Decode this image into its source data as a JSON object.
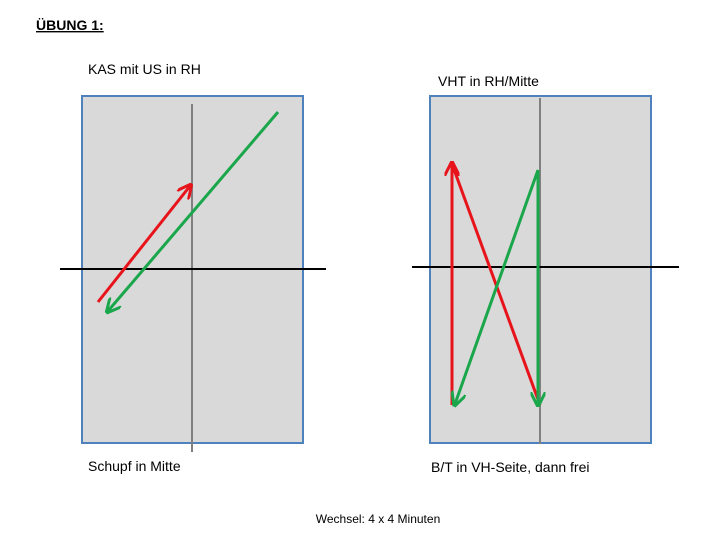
{
  "header": {
    "title": "ÜBUNG 1:"
  },
  "diagrams": [
    {
      "top_label": "KAS mit US in RH",
      "bottom_label": "Schupf in Mitte"
    },
    {
      "top_label": "VHT in RH/Mitte",
      "bottom_label": "B/T in VH-Seite, dann frei"
    }
  ],
  "footer": {
    "note": "Wechsel: 4 x 4 Minuten"
  }
}
